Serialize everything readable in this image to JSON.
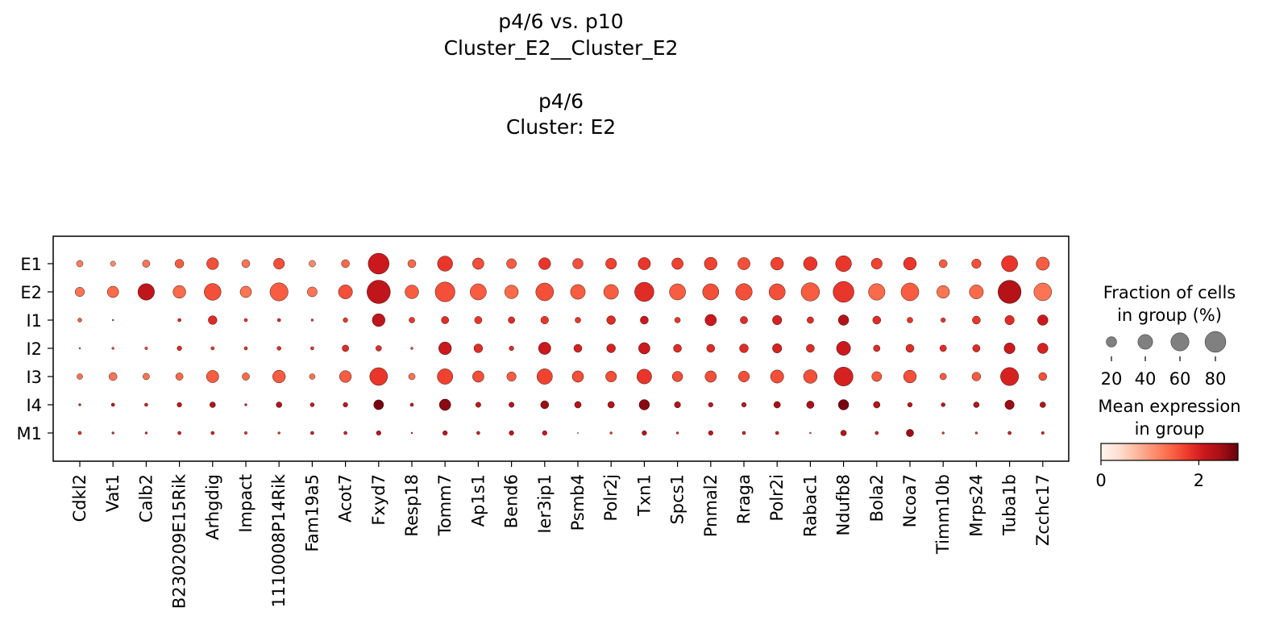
{
  "title_lines": [
    "p4/6 vs. p10",
    "Cluster_E2__Cluster_E2",
    "",
    "p4/6",
    "Cluster: E2"
  ],
  "chart_data": {
    "type": "dotplot",
    "genes": [
      "Cdkl2",
      "Vat1",
      "Calb2",
      "B230209E15Rik",
      "Arhgdig",
      "Impact",
      "1110008P14Rik",
      "Fam19a5",
      "Acot7",
      "Fxyd7",
      "Resp18",
      "Tomm7",
      "Ap1s1",
      "Bend6",
      "Ier3ip1",
      "Psmb4",
      "Polr2j",
      "Txn1",
      "Spcs1",
      "Pnmal2",
      "Rraga",
      "Polr2i",
      "Rabac1",
      "Ndufb8",
      "Bola2",
      "Ncoa7",
      "Timm10b",
      "Mrps24",
      "Tuba1b",
      "Zcchc17"
    ],
    "groups": [
      "E1",
      "E2",
      "I1",
      "I2",
      "I3",
      "I4",
      "M1"
    ],
    "fraction_pct": [
      [
        8,
        5,
        10,
        14,
        26,
        12,
        22,
        8,
        12,
        80,
        12,
        42,
        24,
        18,
        26,
        20,
        22,
        28,
        24,
        30,
        28,
        30,
        34,
        46,
        22,
        30,
        12,
        16,
        48,
        32
      ],
      [
        16,
        24,
        50,
        30,
        52,
        24,
        60,
        18,
        36,
        100,
        34,
        72,
        48,
        34,
        58,
        40,
        40,
        68,
        48,
        48,
        50,
        48,
        62,
        80,
        50,
        58,
        30,
        36,
        98,
        58
      ],
      [
        3,
        0.5,
        0,
        2,
        14,
        2,
        2,
        1,
        4,
        30,
        6,
        10,
        10,
        8,
        11,
        6,
        14,
        12,
        6,
        24,
        10,
        16,
        8,
        20,
        12,
        6,
        4,
        12,
        16,
        20
      ],
      [
        0.5,
        1,
        1.5,
        4,
        2,
        2,
        3,
        2,
        8,
        6,
        1,
        30,
        14,
        4,
        28,
        12,
        14,
        24,
        12,
        12,
        14,
        16,
        12,
        36,
        8,
        12,
        8,
        10,
        22,
        20
      ],
      [
        6,
        12,
        8,
        10,
        28,
        10,
        30,
        6,
        26,
        58,
        8,
        44,
        24,
        16,
        44,
        24,
        22,
        40,
        20,
        24,
        22,
        32,
        34,
        66,
        18,
        30,
        8,
        14,
        60,
        12
      ],
      [
        1,
        2,
        2,
        4,
        6,
        1,
        6,
        3,
        4,
        18,
        2,
        24,
        5,
        5,
        12,
        8,
        8,
        20,
        7,
        4,
        4,
        8,
        10,
        20,
        8,
        4,
        3,
        6,
        16,
        6
      ],
      [
        2,
        1,
        1,
        2,
        2,
        1.5,
        1,
        2,
        2,
        4,
        0.5,
        4,
        2,
        4,
        4,
        0.2,
        1,
        4,
        1,
        4,
        2,
        2,
        0.5,
        6,
        2,
        10,
        1,
        1,
        2,
        1.5
      ]
    ],
    "mean_expression": [
      [
        1.2,
        1.1,
        1.3,
        1.5,
        1.6,
        1.3,
        1.6,
        1.1,
        1.4,
        2.1,
        1.4,
        1.8,
        1.6,
        1.5,
        1.8,
        1.6,
        1.7,
        1.8,
        1.7,
        1.7,
        1.6,
        1.7,
        1.8,
        1.8,
        1.7,
        1.8,
        1.5,
        1.6,
        1.8,
        1.5
      ],
      [
        1.3,
        1.4,
        2.2,
        1.4,
        1.6,
        1.3,
        1.5,
        1.3,
        1.6,
        2.2,
        1.5,
        1.6,
        1.5,
        1.4,
        1.6,
        1.5,
        1.5,
        1.9,
        1.5,
        1.6,
        1.6,
        1.6,
        1.5,
        1.8,
        1.4,
        1.5,
        1.3,
        1.4,
        2.3,
        1.3
      ],
      [
        1.5,
        1.5,
        0,
        1.9,
        1.9,
        1.8,
        1.9,
        1.8,
        1.8,
        2.2,
        1.8,
        1.9,
        1.8,
        1.9,
        1.8,
        1.8,
        1.9,
        2.1,
        1.8,
        2.1,
        1.9,
        2.0,
        1.9,
        2.3,
        1.9,
        1.8,
        1.8,
        1.8,
        1.9,
        2.1
      ],
      [
        1.4,
        1.6,
        1.6,
        1.9,
        1.8,
        1.8,
        1.9,
        1.8,
        1.9,
        1.9,
        1.7,
        2.1,
        1.9,
        1.9,
        2.1,
        2.0,
        2.0,
        2.1,
        1.9,
        1.9,
        1.9,
        2.0,
        1.9,
        2.1,
        1.9,
        1.9,
        1.9,
        1.9,
        2.1,
        2.0
      ],
      [
        1.3,
        1.3,
        1.3,
        1.4,
        1.5,
        1.4,
        1.5,
        1.3,
        1.5,
        1.8,
        1.3,
        1.7,
        1.6,
        1.5,
        1.7,
        1.6,
        1.6,
        1.8,
        1.6,
        1.6,
        1.6,
        1.6,
        1.6,
        2.0,
        1.5,
        1.6,
        1.5,
        1.5,
        2.0,
        1.6
      ],
      [
        2.0,
        2.2,
        2.0,
        2.2,
        2.3,
        2.0,
        2.3,
        2.1,
        2.2,
        2.7,
        2.1,
        2.6,
        2.2,
        2.3,
        2.5,
        2.3,
        2.3,
        2.6,
        2.3,
        2.2,
        2.2,
        2.4,
        2.4,
        2.7,
        2.3,
        2.2,
        2.2,
        2.3,
        2.5,
        2.3
      ],
      [
        1.8,
        1.9,
        1.9,
        2.0,
        2.0,
        1.8,
        1.8,
        2.0,
        2.0,
        2.2,
        1.8,
        2.2,
        2.0,
        2.2,
        2.1,
        1.5,
        1.8,
        2.3,
        1.8,
        2.2,
        2.0,
        2.0,
        1.5,
        2.3,
        2.0,
        2.5,
        1.8,
        1.8,
        2.0,
        2.0
      ]
    ],
    "size_legend": {
      "title_lines": [
        "Fraction of cells",
        "in group (%)"
      ],
      "values": [
        20,
        40,
        60,
        80
      ],
      "labels": [
        "20",
        "40",
        "60",
        "80"
      ]
    },
    "color_legend": {
      "title_lines": [
        "Mean expression",
        "in group"
      ],
      "min": 0,
      "max": 2.8,
      "tick_values": [
        0,
        2
      ],
      "tick_labels": [
        "0",
        "2"
      ],
      "colormap": "Reds"
    },
    "colors": {
      "reds_stops": [
        "#fff5f0",
        "#fee0d2",
        "#fcbba1",
        "#fc9272",
        "#fb6a4a",
        "#ef3b2c",
        "#cb181d",
        "#a50f15",
        "#67000d"
      ],
      "dot_edge": "#000000",
      "size_legend_dot": "#808080"
    }
  }
}
